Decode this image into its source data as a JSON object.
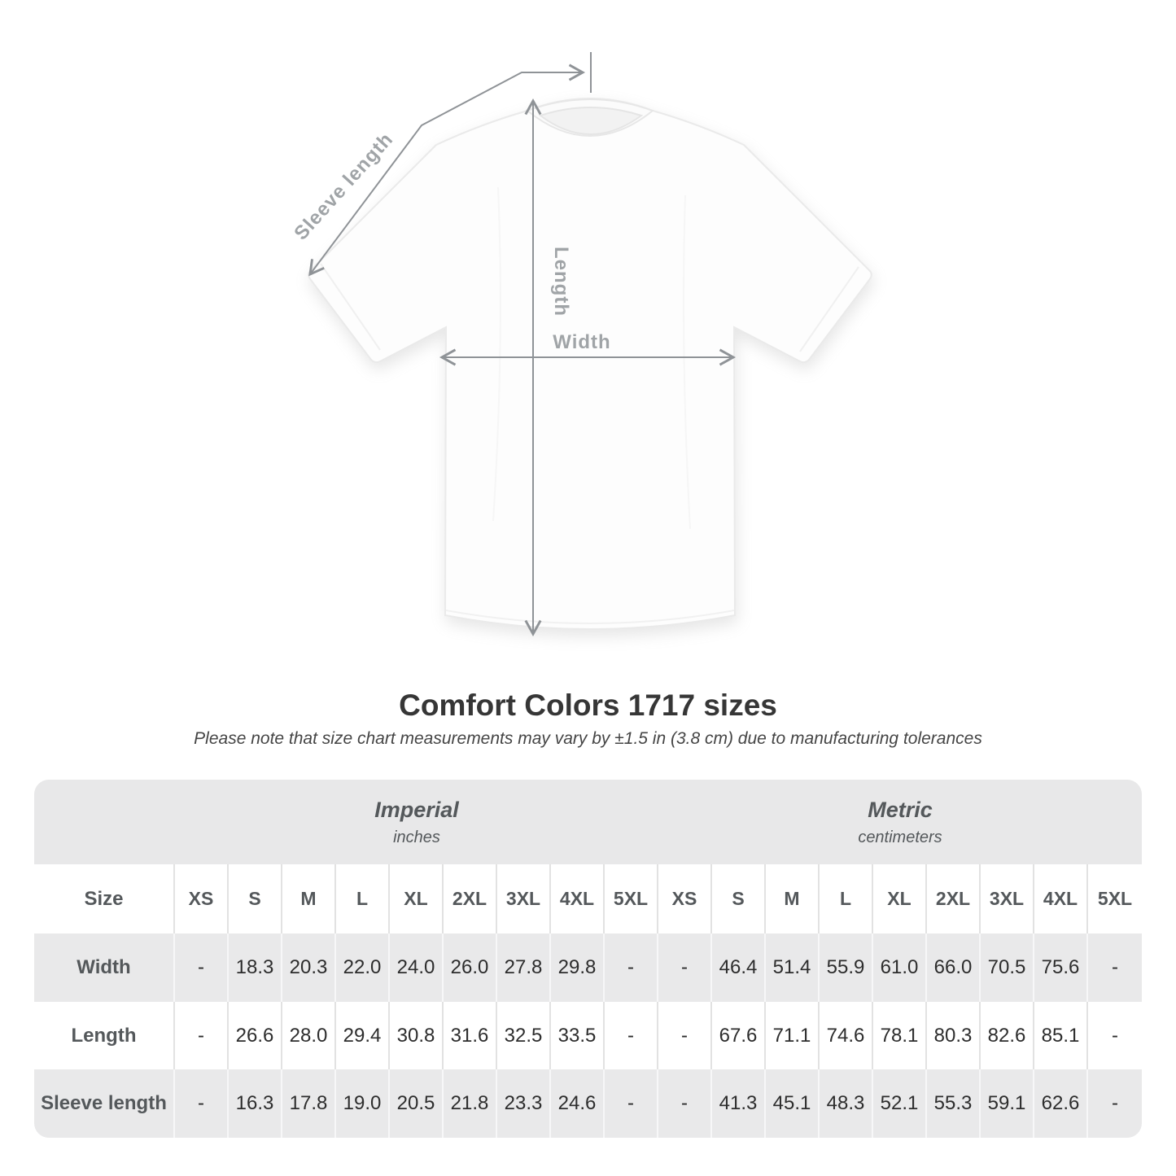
{
  "title": "Comfort Colors 1717 sizes",
  "subtitle": "Please note that size chart measurements may vary by ±1.5 in (3.8 cm) due to manufacturing tolerances",
  "diagram": {
    "sleeve_length_label": "Sleeve length",
    "length_label": "Length",
    "width_label": "Width"
  },
  "size_table": {
    "corner_header": "Size",
    "unit_groups": [
      {
        "name": "Imperial",
        "unit": "inches"
      },
      {
        "name": "Metric",
        "unit": "centimeters"
      }
    ],
    "sizes": [
      "XS",
      "S",
      "M",
      "L",
      "XL",
      "2XL",
      "3XL",
      "4XL",
      "5XL"
    ],
    "rows": [
      {
        "label": "Width",
        "imperial": [
          "-",
          "18.3",
          "20.3",
          "22.0",
          "24.0",
          "26.0",
          "27.8",
          "29.8",
          "-"
        ],
        "metric": [
          "-",
          "46.4",
          "51.4",
          "55.9",
          "61.0",
          "66.0",
          "70.5",
          "75.6",
          "-"
        ]
      },
      {
        "label": "Length",
        "imperial": [
          "-",
          "26.6",
          "28.0",
          "29.4",
          "30.8",
          "31.6",
          "32.5",
          "33.5",
          "-"
        ],
        "metric": [
          "-",
          "67.6",
          "71.1",
          "74.6",
          "78.1",
          "80.3",
          "82.6",
          "85.1",
          "-"
        ]
      },
      {
        "label": "Sleeve length",
        "imperial": [
          "-",
          "16.3",
          "17.8",
          "19.0",
          "20.5",
          "21.8",
          "23.3",
          "24.6",
          "-"
        ],
        "metric": [
          "-",
          "41.3",
          "45.1",
          "48.3",
          "52.1",
          "55.3",
          "59.1",
          "62.6",
          "-"
        ]
      }
    ]
  },
  "colors": {
    "table_band": "#e8e8e9",
    "table_row_alt": "#e9e9ea",
    "measure_line": "#8f9397",
    "measure_label": "#a0a4a7",
    "value_text": "#2d2d2d",
    "heading_text": "#363636"
  }
}
